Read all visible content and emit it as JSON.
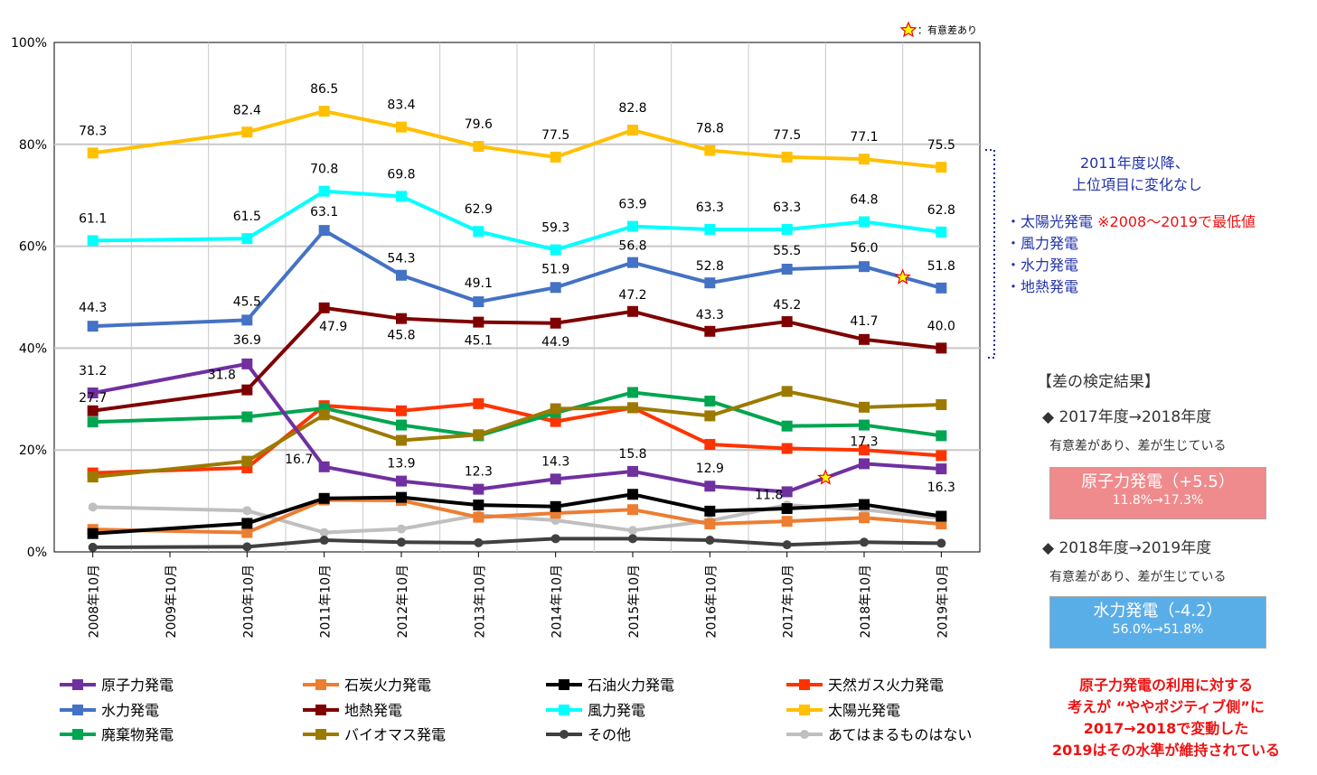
{
  "chart_data": {
    "type": "line",
    "categories": [
      "2008年10月",
      "2009年10月",
      "2010年10月",
      "2011年10月",
      "2012年10月",
      "2013年10月",
      "2014年10月",
      "2015年10月",
      "2016年10月",
      "2017年10月",
      "2018年10月",
      "2019年10月"
    ],
    "y_ticks": [
      "0%",
      "20%",
      "40%",
      "60%",
      "80%",
      "100%"
    ],
    "ylim": [
      0,
      100
    ],
    "grid": true,
    "legend_position": "bottom",
    "significance_note": "：有意差あり",
    "series": [
      {
        "name": "原子力発電",
        "color": "#7030a0",
        "values": [
          31.2,
          null,
          36.9,
          16.7,
          13.9,
          12.3,
          14.3,
          15.8,
          12.9,
          11.8,
          17.3,
          16.3
        ],
        "labels": [
          "31.2",
          "",
          "36.9",
          "16.7",
          "13.9",
          "12.3",
          "14.3",
          "15.8",
          "12.9",
          "11.8",
          "17.3",
          "16.3"
        ]
      },
      {
        "name": "石炭火力発電",
        "color": "#ed7d31",
        "values": [
          4.4,
          null,
          3.8,
          10.2,
          10.1,
          6.8,
          7.6,
          8.3,
          5.5,
          6.0,
          6.7,
          5.5
        ]
      },
      {
        "name": "石油火力発電",
        "color": "#000000",
        "values": [
          3.6,
          null,
          5.6,
          10.5,
          10.7,
          9.2,
          8.9,
          11.3,
          8.0,
          8.5,
          9.3,
          7.0
        ]
      },
      {
        "name": "天然ガス火力発電",
        "color": "#ff3300",
        "values": [
          15.5,
          null,
          16.5,
          28.7,
          27.7,
          29.1,
          25.6,
          28.3,
          21.1,
          20.3,
          20.0,
          18.9
        ]
      },
      {
        "name": "水力発電",
        "color": "#4472c4",
        "values": [
          44.3,
          null,
          45.5,
          63.1,
          54.3,
          49.1,
          51.9,
          56.8,
          52.8,
          55.5,
          56.0,
          51.8
        ],
        "labels": [
          "44.3",
          "",
          "45.5",
          "63.1",
          "54.3",
          "49.1",
          "51.9",
          "56.8",
          "52.8",
          "55.5",
          "56.0",
          "51.8"
        ]
      },
      {
        "name": "地熱発電",
        "color": "#7f0000",
        "values": [
          27.7,
          null,
          31.8,
          47.9,
          45.8,
          45.1,
          44.9,
          47.2,
          43.3,
          45.2,
          41.7,
          40.0
        ],
        "labels": [
          "27.7",
          "",
          "31.8",
          "47.9",
          "45.8",
          "45.1",
          "44.9",
          "47.2",
          "43.3",
          "45.2",
          "41.7",
          "40.0"
        ]
      },
      {
        "name": "風力発電",
        "color": "#00ffff",
        "values": [
          61.1,
          null,
          61.5,
          70.8,
          69.8,
          62.9,
          59.3,
          63.9,
          63.3,
          63.3,
          64.8,
          62.8
        ],
        "labels": [
          "61.1",
          "",
          "61.5",
          "70.8",
          "69.8",
          "62.9",
          "59.3",
          "63.9",
          "63.3",
          "63.3",
          "64.8",
          "62.8"
        ]
      },
      {
        "name": "太陽光発電",
        "color": "#ffc000",
        "values": [
          78.3,
          null,
          82.4,
          86.5,
          83.4,
          79.6,
          77.5,
          82.8,
          78.8,
          77.5,
          77.1,
          75.5
        ],
        "labels": [
          "78.3",
          "",
          "82.4",
          "86.5",
          "83.4",
          "79.6",
          "77.5",
          "82.8",
          "78.8",
          "77.5",
          "77.1",
          "75.5"
        ]
      },
      {
        "name": "廃棄物発電",
        "color": "#00a550",
        "values": [
          25.5,
          null,
          26.5,
          28.2,
          24.9,
          22.8,
          27.3,
          31.3,
          29.6,
          24.7,
          24.9,
          22.8
        ]
      },
      {
        "name": "バイオマス発電",
        "color": "#9c7a00",
        "values": [
          14.7,
          null,
          17.8,
          26.9,
          21.9,
          23.0,
          28.1,
          28.3,
          26.7,
          31.5,
          28.4,
          28.9
        ]
      },
      {
        "name": "その他",
        "color": "#404040",
        "values": [
          0.9,
          null,
          1.0,
          2.3,
          1.9,
          1.8,
          2.6,
          2.6,
          2.3,
          1.4,
          1.9,
          1.7
        ]
      },
      {
        "name": "あてはまるものはない",
        "color": "#bfbfbf",
        "values": [
          8.8,
          null,
          8.1,
          3.8,
          4.5,
          7.2,
          6.2,
          4.2,
          6.1,
          9.2,
          8.3,
          6.6
        ]
      }
    ],
    "significance_markers": [
      {
        "series": "原子力発電",
        "between": [
          "2017年10月",
          "2018年10月"
        ]
      },
      {
        "series": "水力発電",
        "between": [
          "2018年10月",
          "2019年10月"
        ]
      }
    ]
  },
  "side": {
    "note_title_1": "2011年度以降、",
    "note_title_2": "上位項目に変化なし",
    "items": [
      "・太陽光発電",
      "・風力発電",
      "・水力発電",
      "・地熱発電"
    ],
    "solar_note": "※2008～2019で最低値",
    "result_heading": "【差の検定結果】",
    "compare1": "◆ 2017年度→2018年度",
    "compare1_sub": "有意差があり、差が生じている",
    "box1_title": "原子力発電（+5.5）",
    "box1_sub": "11.8%→17.3%",
    "compare2": "◆ 2018年度→2019年度",
    "compare2_sub": "有意差があり、差が生じている",
    "box2_title": "水力発電（-4.2）",
    "box2_sub": "56.0%→51.8%",
    "message": [
      "原子力発電の利用に対する",
      "考えが “ややポジティブ側”に",
      "2017→2018で変動した",
      "2019はその水準が維持されている"
    ]
  }
}
